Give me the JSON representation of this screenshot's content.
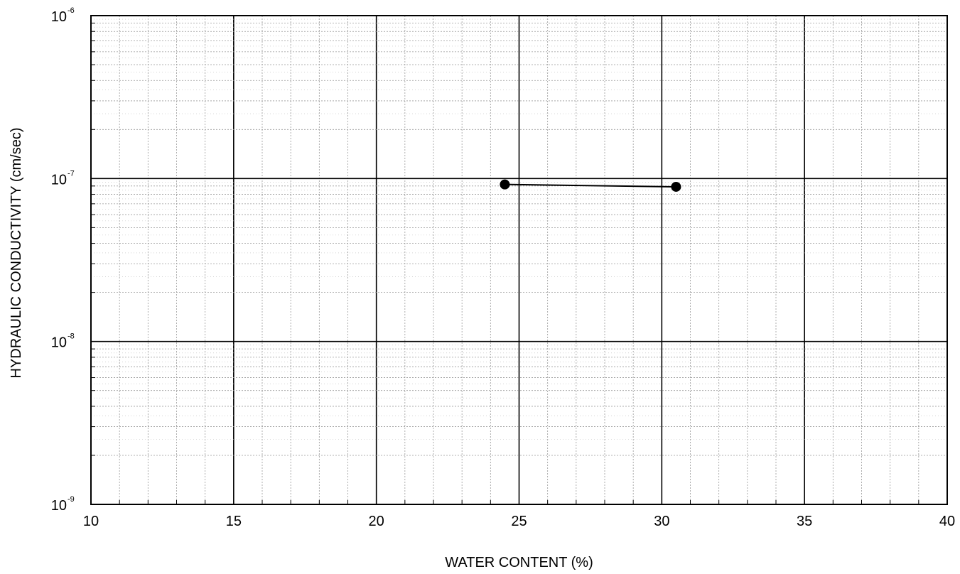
{
  "chart_data": {
    "type": "scatter",
    "title": "",
    "xlabel": "WATER CONTENT (%)",
    "ylabel": "HYDRAULIC CONDUCTIVITY (cm/sec)",
    "xlim": [
      10,
      40
    ],
    "ylim": [
      1e-09,
      1e-06
    ],
    "yscale": "log",
    "grid": true,
    "x_ticks": [
      "10",
      "15",
      "20",
      "25",
      "30",
      "35",
      "40"
    ],
    "y_ticks": [
      {
        "base": "10",
        "exp": "-6"
      },
      {
        "base": "10",
        "exp": "-7"
      },
      {
        "base": "10",
        "exp": "-8"
      },
      {
        "base": "10",
        "exp": "-9"
      }
    ],
    "series": [
      {
        "connected": true,
        "color": "#000000",
        "points": [
          {
            "x": 24.5,
            "y": 9.2e-08
          },
          {
            "x": 30.5,
            "y": 8.9e-08
          }
        ]
      }
    ]
  }
}
